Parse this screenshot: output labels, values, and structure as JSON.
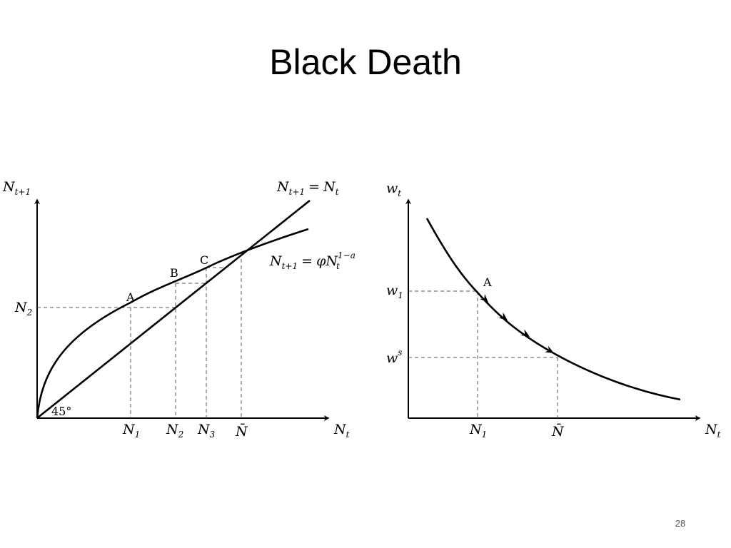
{
  "slide": {
    "title": "Black Death",
    "page_number": "28"
  },
  "left_diagram": {
    "y_axis_label": {
      "base": "N",
      "sub": "t+1"
    },
    "x_axis_label": {
      "base": "N",
      "sub": "t"
    },
    "line_label": {
      "lhs_base": "N",
      "lhs_sub": "t+1",
      "rhs_base": "N",
      "rhs_sub": "t"
    },
    "curve_label": {
      "lhs_base": "N",
      "lhs_sub": "t+1",
      "phi": "φ",
      "base": "N",
      "sub": "t",
      "sup": "1−a"
    },
    "angle_label": "45°",
    "points": [
      "A",
      "B",
      "C"
    ],
    "x_ticks": [
      {
        "base": "N",
        "sub": "1"
      },
      {
        "base": "N",
        "sub": "2"
      },
      {
        "base": "N",
        "sub": "3"
      },
      {
        "base": "N̄",
        "sub": ""
      }
    ],
    "y_ticks": [
      {
        "base": "N",
        "sub": "2"
      }
    ]
  },
  "right_diagram": {
    "y_axis_label": {
      "base": "w",
      "sub": "t"
    },
    "x_axis_label": {
      "base": "N",
      "sub": "t"
    },
    "point": "A",
    "x_ticks": [
      {
        "base": "N",
        "sub": "1"
      },
      {
        "base": "N̄",
        "sub": ""
      }
    ],
    "y_ticks": [
      {
        "base": "w",
        "sub": "1",
        "sup": ""
      },
      {
        "base": "w",
        "sub": "",
        "sup": "s"
      }
    ]
  }
}
